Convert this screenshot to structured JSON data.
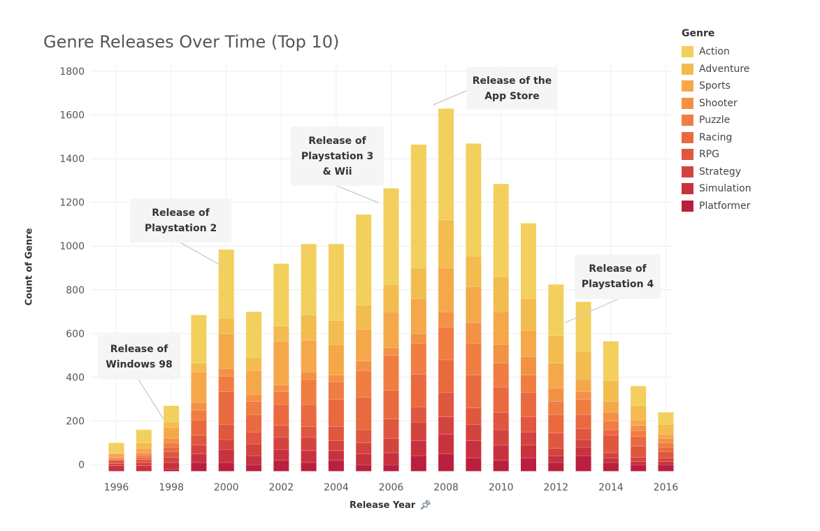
{
  "title": "Genre Releases Over Time (Top 10)",
  "legend": {
    "title": "Genre",
    "items": [
      {
        "label": "Action",
        "color": "#f3cf5e"
      },
      {
        "label": "Adventure",
        "color": "#f2bc4f"
      },
      {
        "label": "Sports",
        "color": "#f5a84a"
      },
      {
        "label": "Shooter",
        "color": "#f39145"
      },
      {
        "label": "Puzzle",
        "color": "#f07d42"
      },
      {
        "label": "Racing",
        "color": "#ea6a40"
      },
      {
        "label": "RPG",
        "color": "#e0573f"
      },
      {
        "label": "Strategy",
        "color": "#d4443e"
      },
      {
        "label": "Simulation",
        "color": "#c8323f"
      },
      {
        "label": "Platformer",
        "color": "#bb1f3e"
      }
    ]
  },
  "axes": {
    "xlabel": "Release Year",
    "ylabel": "Count of Genre",
    "pin_icon": "pin-icon"
  },
  "annotations": [
    {
      "text": "Release of\nWindows 98",
      "year": 1998
    },
    {
      "text": "Release of\nPlaystation 2",
      "year": 2000
    },
    {
      "text": "Release of\nPlaystation 3\n& Wii",
      "year": 2006
    },
    {
      "text": "Release of the\nApp Store",
      "year": 2008
    },
    {
      "text": "Release of\nPlaystation 4",
      "year": 2013
    }
  ],
  "chart_data": {
    "type": "bar",
    "stacked": true,
    "title": "Genre Releases Over Time (Top 10)",
    "xlabel": "Release Year",
    "ylabel": "Count of Genre",
    "ylim": [
      -30,
      1800
    ],
    "yticks": [
      0,
      200,
      400,
      600,
      800,
      1000,
      1200,
      1400,
      1600,
      1800
    ],
    "xticks": [
      "1996",
      "1998",
      "2000",
      "2002",
      "2004",
      "2006",
      "2008",
      "2010",
      "2012",
      "2014",
      "2016"
    ],
    "grid": true,
    "legend_position": "right",
    "categories": [
      "1996",
      "1997",
      "1998",
      "1999",
      "2000",
      "2001",
      "2002",
      "2003",
      "2004",
      "2005",
      "2006",
      "2007",
      "2008",
      "2009",
      "2010",
      "2011",
      "2012",
      "2013",
      "2014",
      "2015",
      "2016"
    ],
    "series": [
      {
        "name": "Platformer",
        "values": [
          -30,
          -30,
          -20,
          10,
          10,
          0,
          20,
          10,
          20,
          0,
          0,
          40,
          50,
          30,
          20,
          30,
          10,
          40,
          10,
          0,
          0
        ]
      },
      {
        "name": "Simulation",
        "values": [
          25,
          25,
          30,
          40,
          60,
          40,
          50,
          55,
          45,
          50,
          55,
          70,
          90,
          80,
          70,
          60,
          30,
          40,
          20,
          15,
          15
        ]
      },
      {
        "name": "Strategy",
        "values": [
          10,
          15,
          25,
          40,
          45,
          55,
          55,
          60,
          45,
          50,
          65,
          85,
          80,
          75,
          70,
          60,
          35,
          35,
          25,
          20,
          15
        ]
      },
      {
        "name": "RPG",
        "values": [
          15,
          15,
          25,
          45,
          70,
          55,
          55,
          50,
          65,
          60,
          90,
          70,
          110,
          75,
          80,
          70,
          70,
          50,
          80,
          50,
          30
        ]
      },
      {
        "name": "Racing",
        "values": [
          5,
          10,
          20,
          70,
          150,
          80,
          95,
          100,
          125,
          150,
          130,
          150,
          150,
          150,
          115,
          110,
          85,
          65,
          25,
          45,
          20
        ]
      },
      {
        "name": "Puzzle",
        "values": [
          5,
          10,
          20,
          45,
          70,
          60,
          60,
          115,
          80,
          120,
          160,
          140,
          150,
          145,
          110,
          80,
          60,
          70,
          40,
          25,
          20
        ]
      },
      {
        "name": "Shooter",
        "values": [
          5,
          10,
          20,
          35,
          35,
          30,
          30,
          35,
          30,
          45,
          35,
          45,
          70,
          95,
          85,
          85,
          60,
          35,
          40,
          25,
          20
        ]
      },
      {
        "name": "Sports",
        "values": [
          15,
          20,
          50,
          140,
          160,
          110,
          200,
          145,
          140,
          145,
          165,
          160,
          200,
          165,
          150,
          120,
          115,
          55,
          50,
          25,
          20
        ]
      },
      {
        "name": "Adventure",
        "values": [
          5,
          25,
          25,
          40,
          70,
          60,
          70,
          115,
          110,
          110,
          125,
          140,
          220,
          140,
          160,
          145,
          125,
          130,
          95,
          65,
          45
        ]
      },
      {
        "name": "Action",
        "values": [
          45,
          60,
          75,
          220,
          315,
          210,
          285,
          325,
          350,
          415,
          440,
          565,
          510,
          515,
          425,
          345,
          235,
          225,
          180,
          90,
          55
        ]
      }
    ]
  }
}
